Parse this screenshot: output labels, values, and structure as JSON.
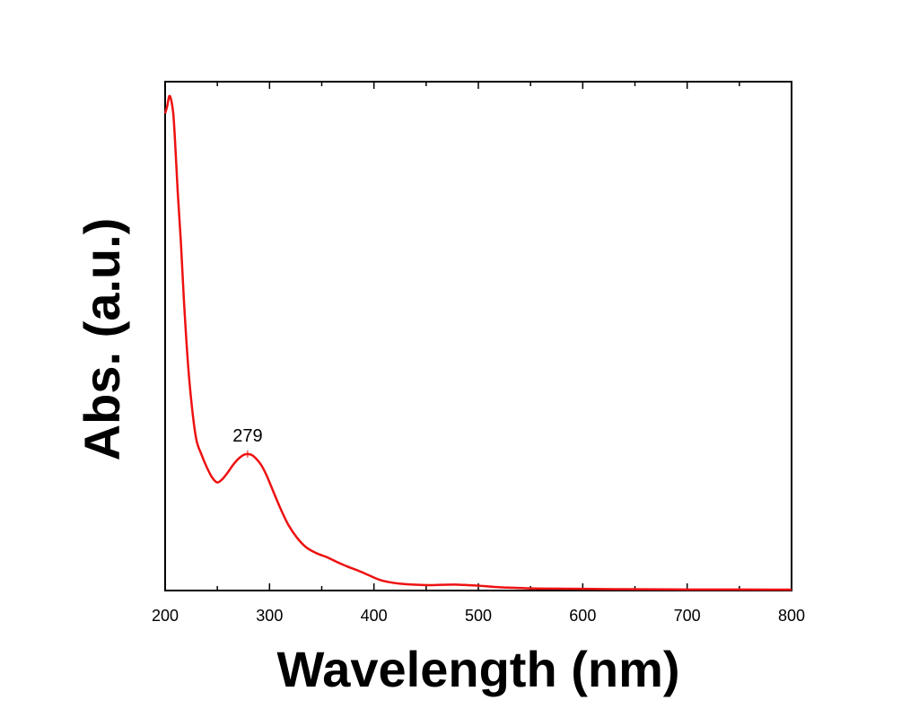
{
  "chart_data": {
    "type": "line",
    "title": "",
    "xlabel": "Wavelength (nm)",
    "ylabel": "Abs. (a.u.)",
    "xlim": [
      200,
      800
    ],
    "ylim": [
      0,
      1
    ],
    "x_ticks": [
      "200",
      "300",
      "400",
      "500",
      "600",
      "700",
      "800"
    ],
    "y_ticks_shown": false,
    "grid": false,
    "legend": "none",
    "line_color": "#ee1111",
    "series": [
      {
        "x": [
          200,
          202,
          204,
          206,
          208,
          210,
          212,
          215,
          218,
          222,
          226,
          230,
          235,
          240,
          245,
          250,
          255,
          260,
          265,
          270,
          275,
          279,
          283,
          287,
          292,
          297,
          302,
          310,
          318,
          326,
          335,
          345,
          355,
          365,
          375,
          385,
          395,
          405,
          415,
          425,
          440,
          455,
          470,
          480,
          490,
          500,
          515,
          530,
          550,
          575,
          600,
          630,
          660,
          700,
          740,
          780,
          800
        ],
        "y": [
          0.955,
          0.97,
          0.99,
          0.98,
          0.95,
          0.88,
          0.8,
          0.7,
          0.58,
          0.45,
          0.36,
          0.3,
          0.27,
          0.245,
          0.225,
          0.215,
          0.222,
          0.235,
          0.25,
          0.262,
          0.27,
          0.272,
          0.27,
          0.263,
          0.25,
          0.23,
          0.205,
          0.165,
          0.13,
          0.105,
          0.085,
          0.073,
          0.065,
          0.055,
          0.046,
          0.038,
          0.029,
          0.02,
          0.015,
          0.012,
          0.01,
          0.009,
          0.01,
          0.01,
          0.009,
          0.008,
          0.0055,
          0.004,
          0.0025,
          0.002,
          0.0015,
          0.001,
          0.0006,
          0.0003,
          0.0002,
          0.0001,
          0.0001
        ]
      }
    ],
    "annotations": [
      {
        "text": "279",
        "x": 279,
        "y": 0.272
      }
    ]
  }
}
